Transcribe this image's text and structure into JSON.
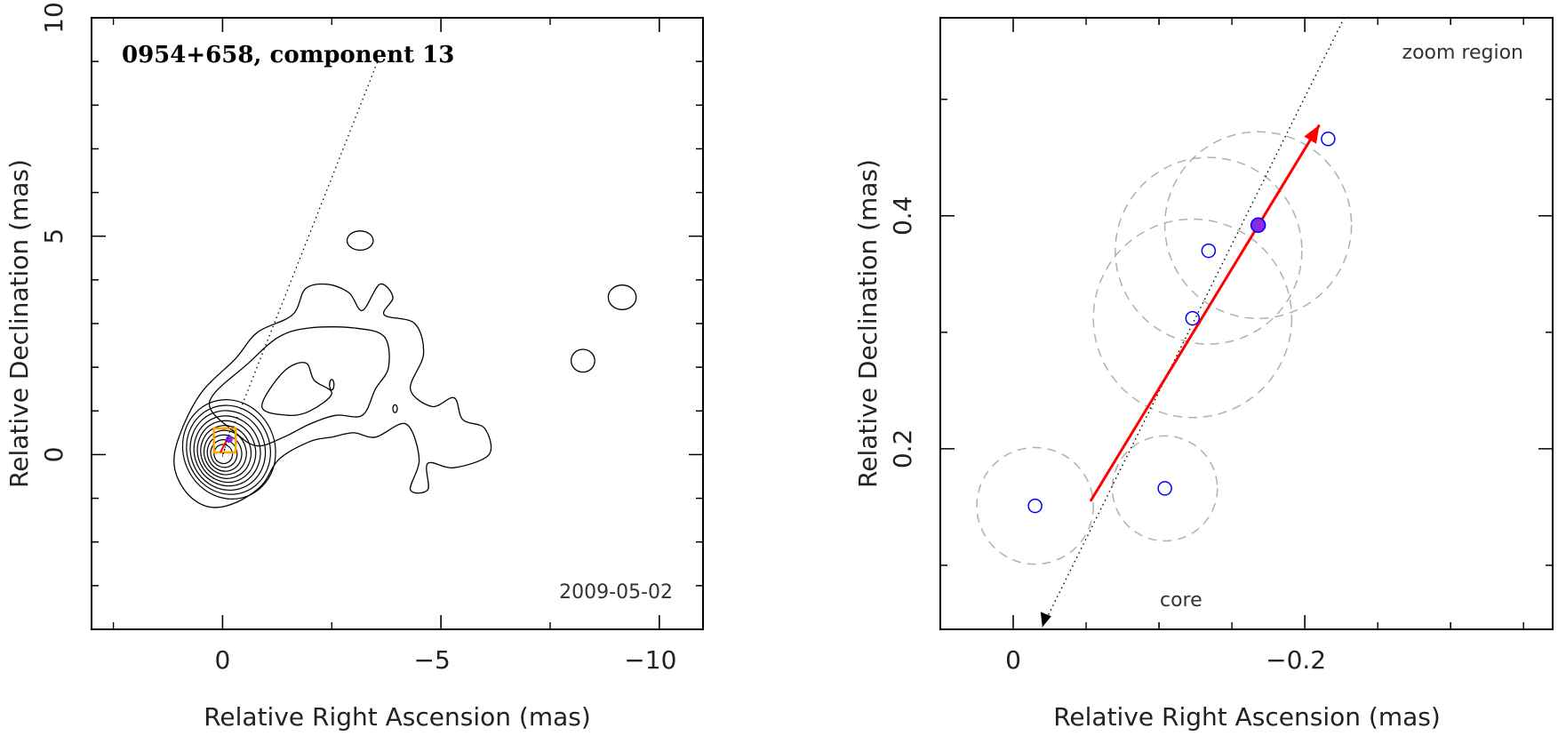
{
  "chart_data": [
    {
      "type": "contour",
      "title": "0954+658, component 13",
      "date": "2009-05-02",
      "xlabel": "Relative Right Ascension (mas)",
      "ylabel": "Relative Declination (mas)",
      "xlim": [
        3.0,
        -11.0
      ],
      "ylim": [
        -4.0,
        10.0
      ],
      "xticks": [
        0,
        -5,
        -10
      ],
      "xtick_labels": [
        "0",
        "−5",
        "−10"
      ],
      "yticks": [
        0,
        5,
        10
      ],
      "ytick_labels": [
        "0",
        "5",
        "10"
      ],
      "core": {
        "x": 0.0,
        "y": 0.0
      },
      "component_marker": {
        "x": -0.15,
        "y": 0.35
      },
      "zoom_box": {
        "xmin": -0.3,
        "xmax": 0.2,
        "ymin": 0.05,
        "ymax": 0.6
      },
      "direction_line": [
        {
          "x": 0.0,
          "y": 0.0
        },
        {
          "x": -3.55,
          "y": 9.0
        }
      ],
      "core_contour_rings": [
        {
          "rx": 1.05,
          "ry": 1.15
        },
        {
          "rx": 0.95,
          "ry": 1.03
        },
        {
          "rx": 0.85,
          "ry": 0.92
        },
        {
          "rx": 0.75,
          "ry": 0.81
        },
        {
          "rx": 0.66,
          "ry": 0.71
        },
        {
          "rx": 0.57,
          "ry": 0.61
        },
        {
          "rx": 0.48,
          "ry": 0.51
        },
        {
          "rx": 0.39,
          "ry": 0.42
        },
        {
          "rx": 0.3,
          "ry": 0.32
        },
        {
          "rx": 0.21,
          "ry": 0.22
        }
      ],
      "outer_contour": [
        {
          "x": 1.1,
          "y": -0.3
        },
        {
          "x": 1.0,
          "y": 0.4
        },
        {
          "x": 0.5,
          "y": 1.4
        },
        {
          "x": -0.3,
          "y": 2.2
        },
        {
          "x": -0.8,
          "y": 2.8
        },
        {
          "x": -1.6,
          "y": 3.2
        },
        {
          "x": -1.9,
          "y": 3.8
        },
        {
          "x": -2.4,
          "y": 3.9
        },
        {
          "x": -2.9,
          "y": 3.7
        },
        {
          "x": -3.2,
          "y": 3.3
        },
        {
          "x": -3.6,
          "y": 3.9
        },
        {
          "x": -3.9,
          "y": 3.6
        },
        {
          "x": -3.7,
          "y": 3.2
        },
        {
          "x": -4.4,
          "y": 3.0
        },
        {
          "x": -4.6,
          "y": 2.3
        },
        {
          "x": -4.3,
          "y": 1.5
        },
        {
          "x": -4.8,
          "y": 1.1
        },
        {
          "x": -5.3,
          "y": 1.3
        },
        {
          "x": -5.5,
          "y": 0.8
        },
        {
          "x": -6.0,
          "y": 0.6
        },
        {
          "x": -6.1,
          "y": 0.0
        },
        {
          "x": -5.3,
          "y": -0.3
        },
        {
          "x": -4.7,
          "y": -0.2
        },
        {
          "x": -4.7,
          "y": -0.8
        },
        {
          "x": -4.3,
          "y": -0.8
        },
        {
          "x": -4.5,
          "y": -0.1
        },
        {
          "x": -4.2,
          "y": 0.7
        },
        {
          "x": -3.5,
          "y": 0.4
        },
        {
          "x": -3.0,
          "y": 0.5
        },
        {
          "x": -2.5,
          "y": 0.4
        },
        {
          "x": -2.0,
          "y": 0.3
        },
        {
          "x": -1.3,
          "y": -0.1
        },
        {
          "x": -0.9,
          "y": -0.7
        },
        {
          "x": -0.3,
          "y": -1.1
        },
        {
          "x": 0.3,
          "y": -1.2
        },
        {
          "x": 0.8,
          "y": -0.9
        }
      ],
      "inner_contour": [
        {
          "x": 0.3,
          "y": 1.2
        },
        {
          "x": -0.6,
          "y": 2.1
        },
        {
          "x": -1.3,
          "y": 2.7
        },
        {
          "x": -2.0,
          "y": 2.9
        },
        {
          "x": -3.0,
          "y": 2.9
        },
        {
          "x": -3.7,
          "y": 2.7
        },
        {
          "x": -3.8,
          "y": 2.0
        },
        {
          "x": -3.5,
          "y": 1.5
        },
        {
          "x": -3.2,
          "y": 0.9
        },
        {
          "x": -2.6,
          "y": 0.9
        },
        {
          "x": -2.0,
          "y": 0.7
        },
        {
          "x": -1.4,
          "y": 0.4
        },
        {
          "x": -0.8,
          "y": 0.2
        },
        {
          "x": -0.3,
          "y": 0.5
        }
      ],
      "inner_contour_2": [
        {
          "x": -0.9,
          "y": 1.1
        },
        {
          "x": -1.4,
          "y": 1.9
        },
        {
          "x": -1.9,
          "y": 2.1
        },
        {
          "x": -2.1,
          "y": 1.7
        },
        {
          "x": -2.5,
          "y": 1.4
        },
        {
          "x": -2.0,
          "y": 1.0
        },
        {
          "x": -1.5,
          "y": 0.9
        }
      ],
      "islands": [
        {
          "x": -3.15,
          "y": 4.9,
          "rx": 0.3,
          "ry": 0.22
        },
        {
          "x": -9.15,
          "y": 3.6,
          "rx": 0.32,
          "ry": 0.28
        },
        {
          "x": -8.25,
          "y": 2.15,
          "rx": 0.27,
          "ry": 0.26
        },
        {
          "x": -2.5,
          "y": 1.6,
          "rx": 0.05,
          "ry": 0.12
        },
        {
          "x": -3.95,
          "y": 1.05,
          "rx": 0.05,
          "ry": 0.09
        }
      ]
    },
    {
      "type": "scatter",
      "xlabel": "Relative Right Ascension (mas)",
      "ylabel": "Relative Declination (mas)",
      "xlim": [
        0.05,
        -0.37
      ],
      "ylim": [
        0.045,
        0.57
      ],
      "xticks": [
        0,
        -0.2
      ],
      "xtick_labels": [
        "0",
        "−0.2"
      ],
      "yticks": [
        0.2,
        0.4
      ],
      "ytick_labels": [
        "0.2",
        "0.4"
      ],
      "annotation_zoom": "zoom region",
      "annotation_core": "core",
      "points": [
        {
          "x": -0.015,
          "y": 0.151,
          "r": 0.04,
          "current": false
        },
        {
          "x": -0.104,
          "y": 0.166,
          "r": 0.036,
          "current": false
        },
        {
          "x": -0.123,
          "y": 0.312,
          "r": 0.068,
          "current": false
        },
        {
          "x": -0.134,
          "y": 0.37,
          "r": 0.064,
          "current": false
        },
        {
          "x": -0.168,
          "y": 0.392,
          "r": 0.064,
          "current": true
        },
        {
          "x": -0.216,
          "y": 0.466,
          "r": 0.0,
          "current": false
        }
      ],
      "velocity_arrow": {
        "start": {
          "x": -0.053,
          "y": 0.155
        },
        "end": {
          "x": -0.21,
          "y": 0.478
        },
        "color": "#ff0000"
      },
      "direction_line": {
        "start": {
          "x": -0.227,
          "y": 0.57
        },
        "end": {
          "x": -0.02,
          "y": 0.047
        }
      },
      "marker_color": "#0000ff",
      "current_color": "#8a2be2",
      "error_circle_color": "#b0b0b0"
    }
  ],
  "colors": {
    "zoom_box": "#ffa500",
    "arrow": "#ff0000",
    "markers": "#0000ff",
    "current": "#8a2be2",
    "error_circles": "#b0b0b0",
    "contours": "#000000"
  }
}
